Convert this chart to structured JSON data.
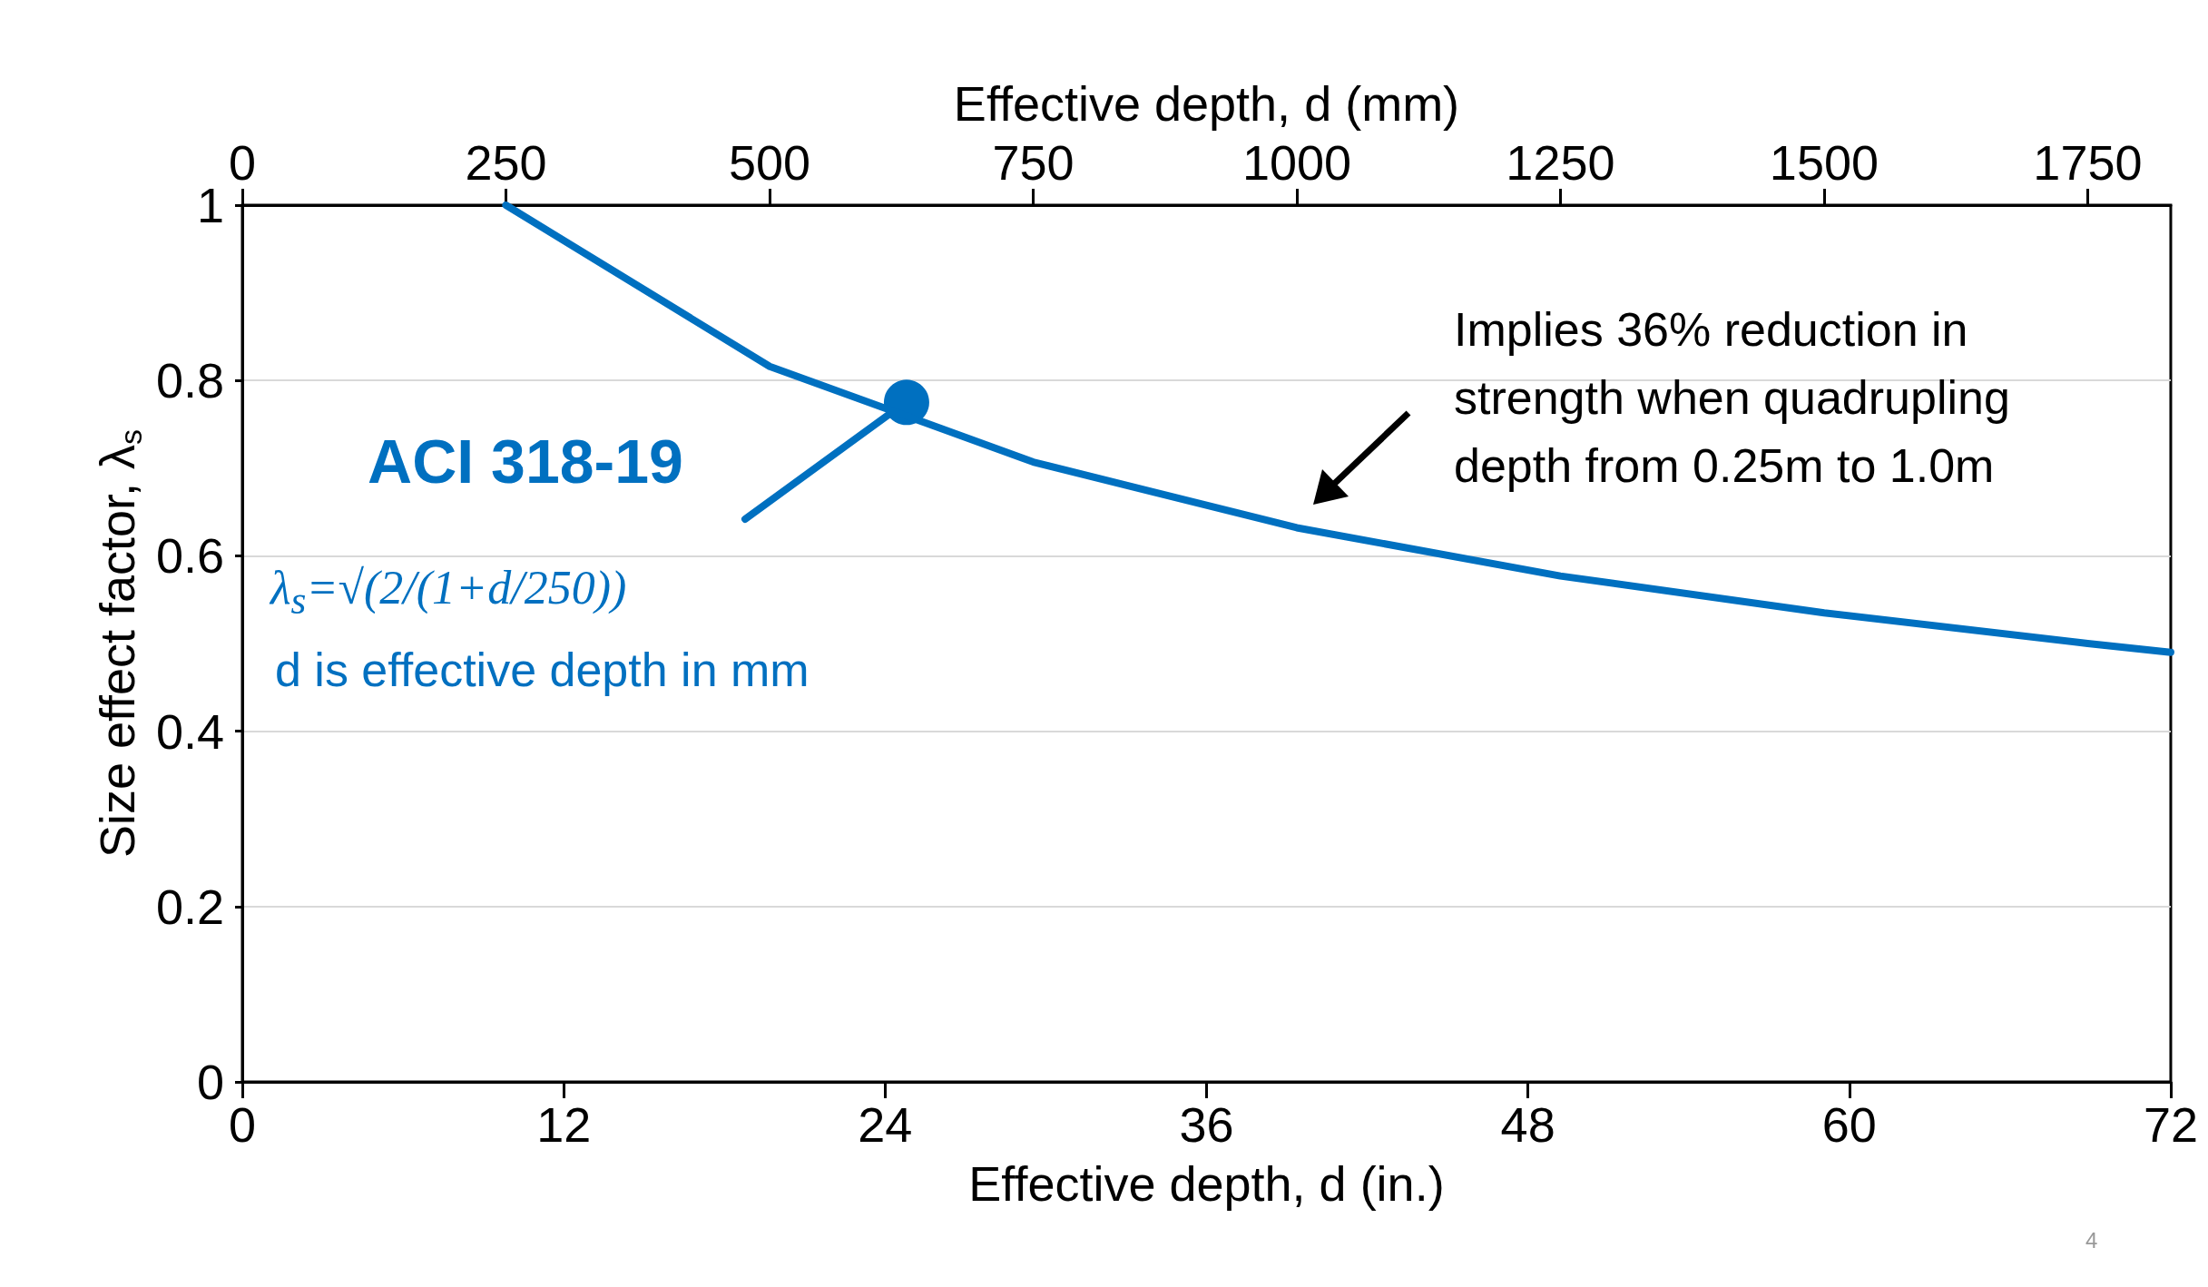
{
  "chart_data": {
    "type": "line",
    "xlabel": "Effective depth, d (in.)",
    "x2label": "Effective depth, d (mm)",
    "ylabel": "Size effect factor, λ$_{s}$",
    "x": [
      9.84,
      19.69,
      29.53,
      39.37,
      49.21,
      59.06,
      68.9,
      72
    ],
    "series": [
      {
        "color": "#0070c0",
        "marker": "none",
        "values": [
          1,
          0.816,
          0.707,
          0.632,
          0.577,
          0.535,
          0.5,
          0.49
        ]
      },
      {
        "type": "scatter",
        "name": "ACI 318-19",
        "color": "#0070c0",
        "marker": "circle",
        "x": [
          24.8
        ],
        "values": [
          0.775
        ]
      }
    ],
    "xlim": [
      0,
      72
    ],
    "xticks": [
      0,
      12,
      24,
      36,
      48,
      60,
      72
    ],
    "x2lim": [
      0,
      1828.8
    ],
    "x2ticks": [
      0,
      250,
      500,
      750,
      1000,
      1250,
      1500,
      1750
    ],
    "ylim": [
      0,
      1
    ],
    "yticks": [
      0,
      0.2,
      0.4,
      0.6,
      0.8,
      1
    ],
    "grid": "y",
    "line_style": "solid",
    "annotations": [
      "Implies 36% reduction in strength when quadrupling depth from 0.25m to 1.0m",
      "λ$_{s}$=√(2/(1+d/250))",
      "d is effective depth in mm",
      "4"
    ]
  }
}
